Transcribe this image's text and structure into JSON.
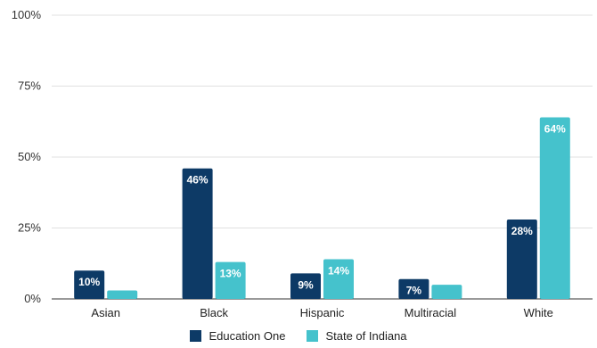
{
  "chart_data": {
    "type": "bar",
    "categories": [
      "Asian",
      "Black",
      "Hispanic",
      "Multiracial",
      "White"
    ],
    "series": [
      {
        "name": "Education One",
        "color": "#0d3a66",
        "values": [
          10,
          46,
          9,
          7,
          28
        ],
        "labels": [
          "10%",
          "46%",
          "9%",
          "7%",
          "28%"
        ]
      },
      {
        "name": "State of Indiana",
        "color": "#45c2cc",
        "values": [
          3,
          13,
          14,
          5,
          64
        ],
        "labels": [
          "",
          "13%",
          "14%",
          "",
          "64%"
        ]
      }
    ],
    "y_ticks": [
      "0%",
      "25%",
      "50%",
      "75%",
      "100%"
    ],
    "ylim": [
      0,
      100
    ],
    "grid": true,
    "legend_position": "bottom"
  }
}
